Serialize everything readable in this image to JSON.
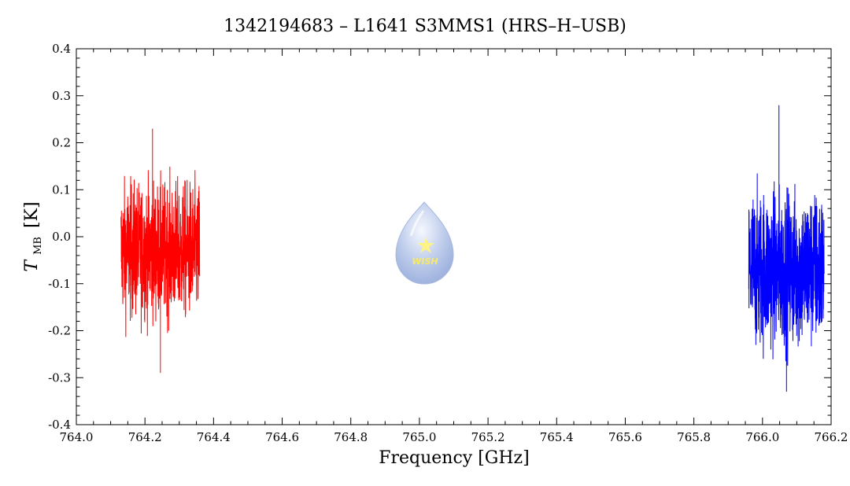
{
  "chart_data": {
    "type": "line",
    "title": "1342194683 – L1641 S3MMS1 (HRS–H–USB)",
    "xlabel": "Frequency [GHz]",
    "ylabel_main": "T",
    "ylabel_sub": "MB",
    "ylabel_unit": "[K]",
    "xlim": [
      764.0,
      766.2
    ],
    "ylim": [
      -0.4,
      0.4
    ],
    "x_ticks": [
      "764.0",
      "764.2",
      "764.4",
      "764.6",
      "764.8",
      "765.0",
      "765.2",
      "765.4",
      "765.6",
      "765.8",
      "766.0",
      "766.2"
    ],
    "y_ticks": [
      "0.4",
      "0.3",
      "0.2",
      "0.1",
      "0.0",
      "-0.1",
      "-0.2",
      "-0.3",
      "-0.4"
    ],
    "grid": false,
    "series": [
      {
        "color": "#ff0000",
        "x_range": [
          764.13,
          764.36
        ],
        "center": -0.03,
        "max": 0.23,
        "min": -0.29
      },
      {
        "color": "#0000ff",
        "x_range": [
          765.96,
          766.18
        ],
        "center": -0.07,
        "max": 0.28,
        "min": -0.33
      }
    ],
    "logo": {
      "text": "WISH"
    }
  }
}
